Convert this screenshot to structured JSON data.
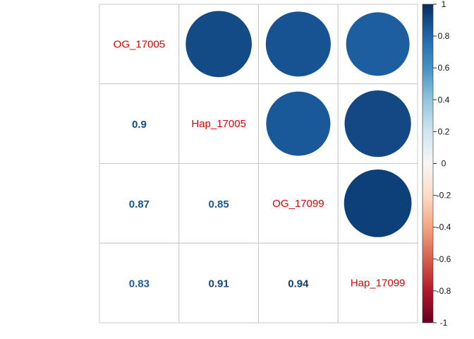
{
  "chart_data": {
    "type": "heatmap",
    "variables": [
      "OG_17005",
      "Hap_17005",
      "OG_17099",
      "Hap_17099"
    ],
    "matrix": [
      [
        1.0,
        0.9,
        0.87,
        0.83
      ],
      [
        0.9,
        1.0,
        0.85,
        0.91
      ],
      [
        0.87,
        0.85,
        1.0,
        0.94
      ],
      [
        0.83,
        0.91,
        0.94,
        1.0
      ]
    ],
    "lower_labels": [
      {
        "row": 1,
        "col": 0,
        "text": "0.9"
      },
      {
        "row": 2,
        "col": 0,
        "text": "0.87"
      },
      {
        "row": 2,
        "col": 1,
        "text": "0.85"
      },
      {
        "row": 3,
        "col": 0,
        "text": "0.83"
      },
      {
        "row": 3,
        "col": 1,
        "text": "0.91"
      },
      {
        "row": 3,
        "col": 2,
        "text": "0.94"
      }
    ],
    "upper_method": "circle",
    "lower_method": "number",
    "legend": {
      "range": [
        -1,
        1
      ],
      "ticks": [
        "1",
        "0.8",
        "0.6",
        "0.4",
        "0.2",
        "0",
        "-0.2",
        "-0.4",
        "-0.6",
        "-0.8",
        "-1"
      ],
      "placement": "right"
    },
    "colors": {
      "diag_label": "#e00000",
      "gradient": [
        "#67001f",
        "#b2182b",
        "#d6604d",
        "#f4a582",
        "#fddbc7",
        "#f7f7f7",
        "#d1e5f0",
        "#92c5de",
        "#4393c3",
        "#2166ac",
        "#053061"
      ]
    }
  }
}
